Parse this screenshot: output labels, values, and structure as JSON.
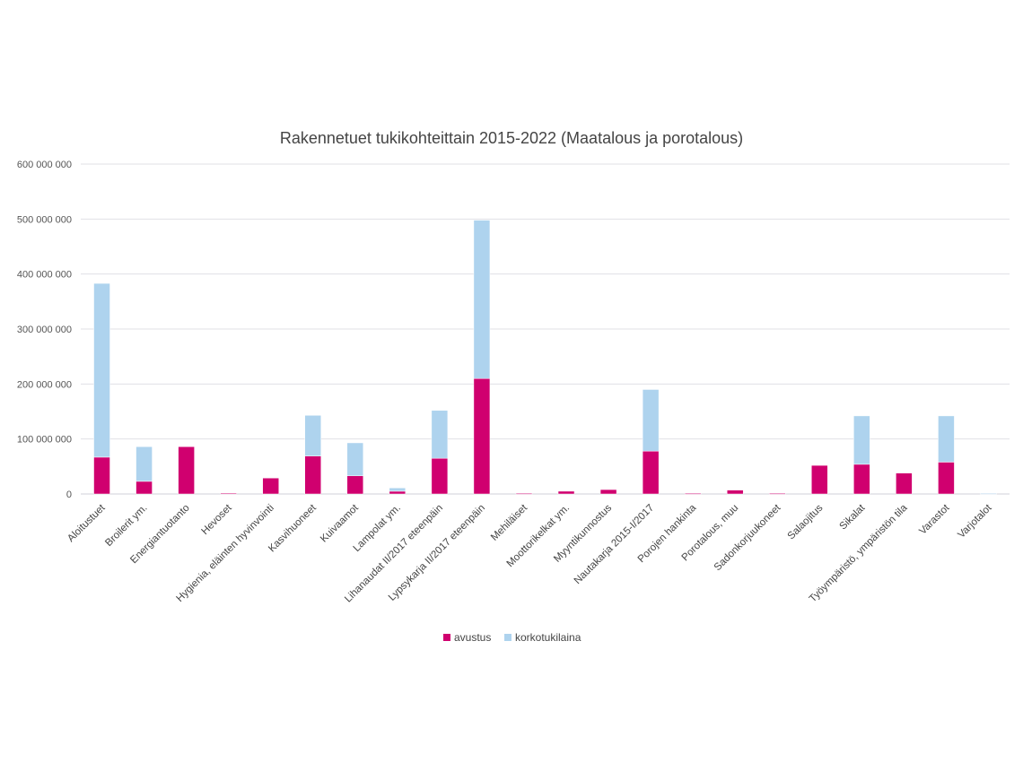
{
  "chart_data": {
    "type": "bar",
    "stacked": true,
    "title": "Rakennetuet tukikohteittain 2015-2022 (Maatalous ja porotalous)",
    "xlabel": "",
    "ylabel": "",
    "ylim": [
      0,
      600000000
    ],
    "yticks": [
      0,
      100000000,
      200000000,
      300000000,
      400000000,
      500000000,
      600000000
    ],
    "ytick_labels": [
      "0",
      "100 000 000",
      "200 000 000",
      "300 000 000",
      "400 000 000",
      "500 000 000",
      "600 000 000"
    ],
    "grid": true,
    "legend_position": "bottom",
    "categories": [
      "Aloitustuet",
      "Broilerit ym.",
      "Energiantuotanto",
      "Hevoset",
      "Hygienia, eläinten hyvinvointi",
      "Kasvihuoneet",
      "Kuivaamot",
      "Lampolat ym.",
      "Lihanaudat II/2017 eteenpäin",
      "Lypsykarja II/2017 eteenpäin",
      "Mehiläiset",
      "Moottorikelkat ym.",
      "Myyntikunnostus",
      "Nautakarja 2015-I/2017",
      "Porojen hankinta",
      "Porotalous, muu",
      "Sadonkorjuukoneet",
      "Salaojitus",
      "Sikalat",
      "Työympäristö, ympäristön tila",
      "Varastot",
      "Varjotalot"
    ],
    "series": [
      {
        "name": "avustus",
        "color": "#d0006f",
        "values": [
          67000000,
          23000000,
          86000000,
          1500000,
          29000000,
          69000000,
          33000000,
          5000000,
          65000000,
          210000000,
          1000000,
          5000000,
          8000000,
          78000000,
          1000000,
          7000000,
          1000000,
          52000000,
          54000000,
          38000000,
          58000000,
          0
        ]
      },
      {
        "name": "korkotukilaina",
        "color": "#aed3ee",
        "values": [
          316000000,
          63000000,
          0,
          0,
          0,
          74000000,
          60000000,
          6000000,
          87000000,
          288000000,
          0,
          0,
          0,
          112000000,
          0,
          0,
          0,
          0,
          88000000,
          0,
          84000000,
          1000000
        ]
      }
    ]
  }
}
